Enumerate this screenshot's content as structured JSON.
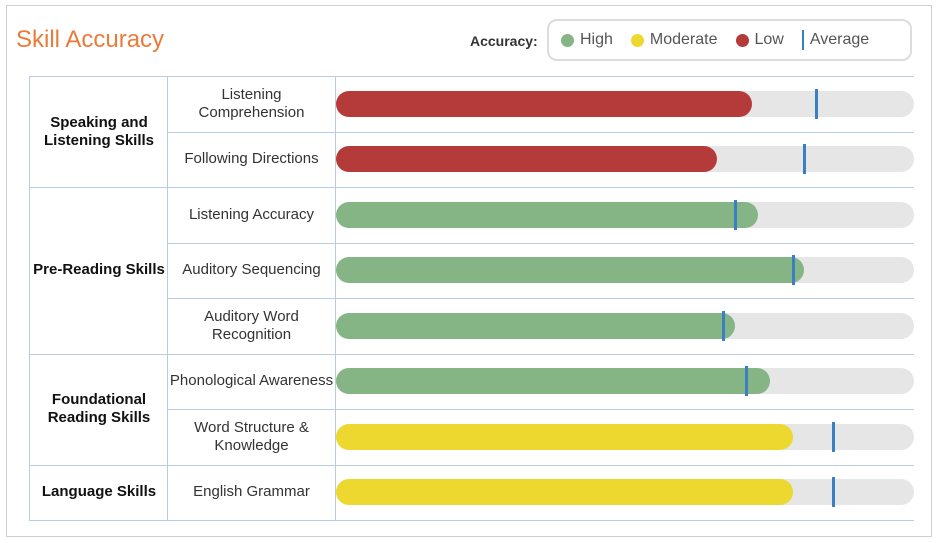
{
  "title": "Skill Accuracy",
  "legend": {
    "label": "Accuracy:",
    "items": [
      {
        "name": "High",
        "color": "#85b584"
      },
      {
        "name": "Moderate",
        "color": "#ecd82e"
      },
      {
        "name": "Low",
        "color": "#b53b3b"
      }
    ],
    "average_label": "Average",
    "average_color": "#3a7fc4"
  },
  "chart_data": {
    "type": "bar",
    "orientation": "horizontal",
    "title": "Skill Accuracy",
    "xlim": [
      0,
      100
    ],
    "categories": [
      {
        "name": "Speaking and Listening Skills",
        "skills": [
          {
            "name": "Listening Comprehension",
            "value": 72,
            "average": 83,
            "level": "Low"
          },
          {
            "name": "Following Directions",
            "value": 66,
            "average": 81,
            "level": "Low"
          }
        ]
      },
      {
        "name": "Pre-Reading Skills",
        "skills": [
          {
            "name": "Listening Accuracy",
            "value": 73,
            "average": 69,
            "level": "High"
          },
          {
            "name": "Auditory Sequencing",
            "value": 81,
            "average": 79,
            "level": "High"
          },
          {
            "name": "Auditory Word Recognition",
            "value": 69,
            "average": 67,
            "level": "High"
          }
        ]
      },
      {
        "name": "Foundational Reading Skills",
        "skills": [
          {
            "name": "Phonological Awareness",
            "value": 75,
            "average": 71,
            "level": "High"
          },
          {
            "name": "Word Structure & Knowledge",
            "value": 79,
            "average": 86,
            "level": "Moderate"
          }
        ]
      },
      {
        "name": "Language Skills",
        "skills": [
          {
            "name": "English Grammar",
            "value": 79,
            "average": 86,
            "level": "Moderate"
          }
        ]
      }
    ]
  }
}
